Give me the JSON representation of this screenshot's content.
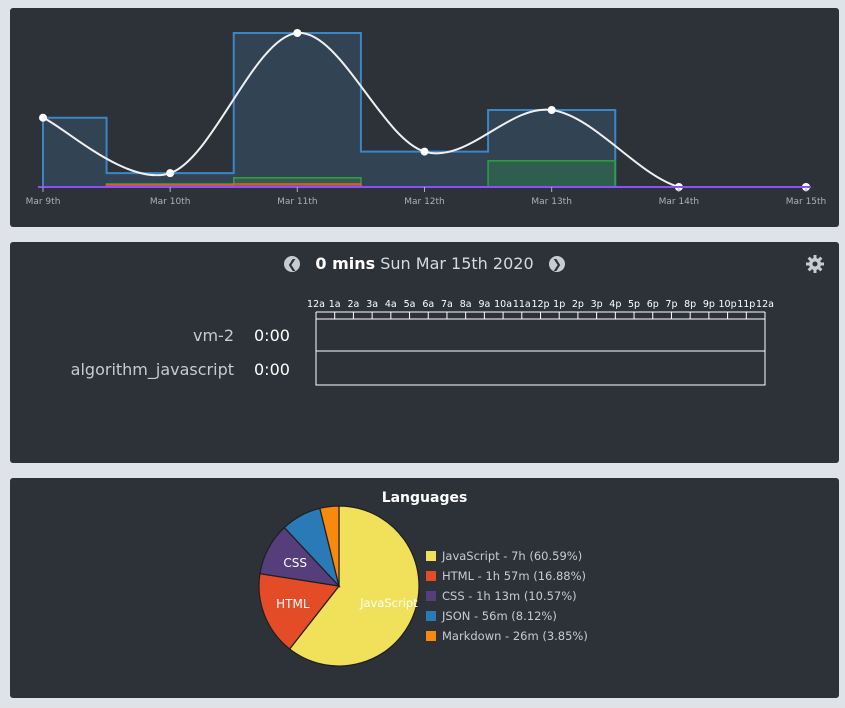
{
  "activity_chart": {
    "chart_data": {
      "type": "line",
      "categories": [
        "Mar 9th",
        "Mar 10th",
        "Mar 11th",
        "Mar 12th",
        "Mar 13th",
        "Mar 14th",
        "Mar 15th"
      ],
      "series": [
        {
          "values": [
            0.45,
            0.09,
            1.0,
            0.23,
            0.5,
            0.0,
            0.0
          ]
        },
        {
          "values": [
            0.45,
            0.09,
            1.0,
            0.23,
            0.5,
            0.0,
            0.0
          ]
        },
        {
          "values": [
            0.0,
            0.02,
            0.06,
            0.0,
            0.17,
            0.0,
            0.0
          ]
        },
        {
          "values": [
            0.0,
            0.015,
            0.02,
            0.0,
            0.0,
            0.0,
            0.0
          ]
        }
      ],
      "ylim": [
        0,
        1.0
      ],
      "grid": false,
      "colors": [
        "#3a86c8",
        "#f0f0f0",
        "#2ea043",
        "#e05a3a"
      ]
    }
  },
  "day_view": {
    "total": "0 mins",
    "date": "Sun Mar 15th 2020",
    "hours": [
      "12a",
      "1a",
      "2a",
      "3a",
      "4a",
      "5a",
      "6a",
      "7a",
      "8a",
      "9a",
      "10a",
      "11a",
      "12p",
      "1p",
      "2p",
      "3p",
      "4p",
      "5p",
      "6p",
      "7p",
      "8p",
      "9p",
      "10p",
      "11p",
      "12a"
    ],
    "rows": [
      {
        "label": "vm-2",
        "time": "0:00"
      },
      {
        "label": "algorithm_javascript",
        "time": "0:00"
      }
    ]
  },
  "languages": {
    "title": "Languages",
    "chart_data": {
      "type": "pie",
      "labels": [
        "JavaScript",
        "HTML",
        "CSS",
        "JSON",
        "Markdown"
      ],
      "values": [
        60.59,
        16.88,
        10.57,
        8.12,
        3.85
      ],
      "colors": [
        "#f1e05a",
        "#e34c26",
        "#563d7c",
        "#2b7ab8",
        "#f7890e"
      ],
      "slice_labels": [
        "JavaScript",
        "HTML",
        "CSS",
        "",
        ""
      ],
      "legend": [
        "JavaScript - 7h (60.59%)",
        "HTML - 1h 57m (16.88%)",
        "CSS - 1h 13m (10.57%)",
        "JSON - 56m (8.12%)",
        "Markdown - 26m (3.85%)"
      ],
      "legend_position": "right"
    }
  }
}
